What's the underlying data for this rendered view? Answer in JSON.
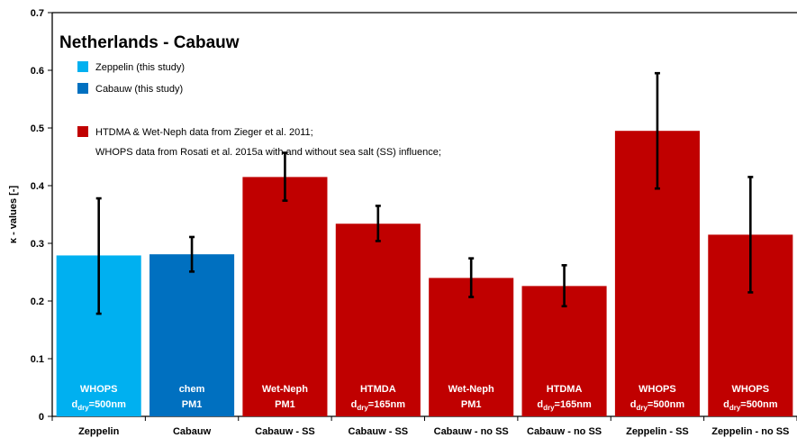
{
  "chart_data": {
    "type": "bar",
    "title": "Netherlands - Cabauw",
    "xlabel": "",
    "ylabel": "κ - values [-]",
    "ylim": [
      0,
      0.7
    ],
    "yticks": [
      "0",
      "0.1",
      "0.2",
      "0.3",
      "0.4",
      "0.5",
      "0.6",
      "0.7"
    ],
    "grid": false,
    "legend_position": "top-left",
    "legend": [
      {
        "text": "Zeppelin (this study)",
        "color": "#00b0f0"
      },
      {
        "text": "Cabauw (this study)",
        "color": "#0070c0"
      },
      {
        "text": "HTDMA & Wet-Neph data from Zieger et al. 2011;",
        "color": "#c00000"
      },
      {
        "text": "WHOPS data from Rosati et al. 2015a with and without sea salt (SS) influence;",
        "color": ""
      }
    ],
    "categories": [
      "Zeppelin",
      "Cabauw",
      "Cabauw - SS",
      "Cabauw - SS",
      "Cabauw - no SS",
      "Cabauw - no SS",
      "Zeppelin - SS",
      "Zeppelin - no SS"
    ],
    "values": [
      0.279,
      0.281,
      0.415,
      0.334,
      0.24,
      0.226,
      0.495,
      0.315
    ],
    "error_low": [
      0.178,
      0.251,
      0.374,
      0.304,
      0.207,
      0.191,
      0.395,
      0.215
    ],
    "error_high": [
      0.378,
      0.311,
      0.457,
      0.365,
      0.274,
      0.262,
      0.595,
      0.415
    ],
    "bar_colors": [
      "#00b0f0",
      "#0070c0",
      "#c00000",
      "#c00000",
      "#c00000",
      "#c00000",
      "#c00000",
      "#c00000"
    ],
    "bar_labels": [
      {
        "line1": "WHOPS",
        "line2_main": "d",
        "line2_sub": "dry",
        "line2_rest": "=500nm"
      },
      {
        "line1": "chem",
        "line2_main": "PM1",
        "line2_sub": "",
        "line2_rest": ""
      },
      {
        "line1": "Wet-Neph",
        "line2_main": "PM1",
        "line2_sub": "",
        "line2_rest": ""
      },
      {
        "line1": "HTMDA",
        "line2_main": "d",
        "line2_sub": "dry",
        "line2_rest": "=165nm"
      },
      {
        "line1": "Wet-Neph",
        "line2_main": "PM1",
        "line2_sub": "",
        "line2_rest": ""
      },
      {
        "line1": "HTDMA",
        "line2_main": "d",
        "line2_sub": "dry",
        "line2_rest": "=165nm"
      },
      {
        "line1": "WHOPS",
        "line2_main": "d",
        "line2_sub": "dry",
        "line2_rest": "=500nm"
      },
      {
        "line1": "WHOPS",
        "line2_main": "d",
        "line2_sub": "dry",
        "line2_rest": "=500nm"
      }
    ]
  }
}
